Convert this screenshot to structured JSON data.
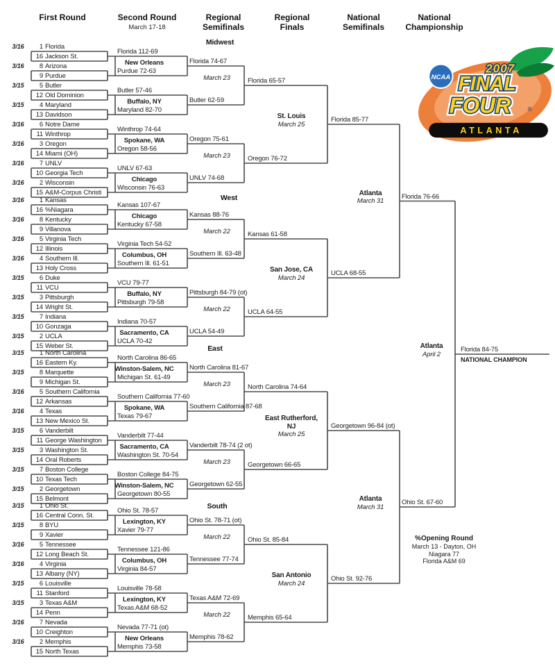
{
  "header": {
    "columns": [
      {
        "title": "First Round",
        "sub": ""
      },
      {
        "title": "Second Round",
        "sub": "March 17-18"
      },
      {
        "title": "Regional\nSemifinals",
        "sub": ""
      },
      {
        "title": "Regional\nFinals",
        "sub": ""
      },
      {
        "title": "National\nSemifinals",
        "sub": ""
      },
      {
        "title": "National\nChampionship",
        "sub": ""
      }
    ]
  },
  "regions": [
    {
      "name": "Midwest",
      "games": [
        {
          "date": "3/16",
          "s1": "1",
          "t1": "Florida",
          "s2": "16",
          "t2": "Jackson St.",
          "winner": "Florida 112-69"
        },
        {
          "date": "3/16",
          "s1": "8",
          "t1": "Arizona",
          "s2": "9",
          "t2": "Purdue",
          "winner": "Purdue 72-63"
        },
        {
          "date": "3/15",
          "s1": "5",
          "t1": "Butler",
          "s2": "12",
          "t2": "Old Dominion",
          "winner": "Butler 57-46"
        },
        {
          "date": "3/15",
          "s1": "4",
          "t1": "Maryland",
          "s2": "13",
          "t2": "Davidson",
          "winner": "Maryland 82-70"
        },
        {
          "date": "3/16",
          "s1": "6",
          "t1": "Notre Dame",
          "s2": "11",
          "t2": "Winthrop",
          "winner": "Winthrop 74-64"
        },
        {
          "date": "3/16",
          "s1": "3",
          "t1": "Oregon",
          "s2": "14",
          "t2": "Miami (OH)",
          "winner": "Oregon 58-56"
        },
        {
          "date": "3/16",
          "s1": "7",
          "t1": "UNLV",
          "s2": "10",
          "t2": "Georgia Tech",
          "winner": "UNLV 67-63"
        },
        {
          "date": "3/16",
          "s1": "2",
          "t1": "Wisconsin",
          "s2": "15",
          "t2": "A&M-Corpus Christi",
          "winner": "Wisconsin 76-63"
        }
      ],
      "cities": [
        "New Orleans",
        "Buffalo, NY",
        "Spokane, WA",
        "Chicago"
      ],
      "semifinal_results": [
        "Florida 74-67",
        "Butler 62-59",
        "Oregon 75-61",
        "UNLV 74-68"
      ],
      "semifinal_dates": [
        "March 23",
        "March 23"
      ],
      "final_results": [
        "Florida 65-57",
        "Oregon 76-72"
      ],
      "site": "St. Louis",
      "site_date": "March 25",
      "champion": "Florida 85-77"
    },
    {
      "name": "West",
      "games": [
        {
          "date": "3/16",
          "s1": "1",
          "t1": "Kansas",
          "s2": "16",
          "t2": "%Niagara",
          "winner": "Kansas 107-67"
        },
        {
          "date": "3/16",
          "s1": "8",
          "t1": "Kentucky",
          "s2": "9",
          "t2": "Villanova",
          "winner": "Kentucky 67-58"
        },
        {
          "date": "3/16",
          "s1": "5",
          "t1": "Virginia Tech",
          "s2": "12",
          "t2": "Illinois",
          "winner": "Virginia Tech 54-52"
        },
        {
          "date": "3/16",
          "s1": "4",
          "t1": "Southern Ill.",
          "s2": "13",
          "t2": "Holy Cross",
          "winner": "Southern Ill. 61-51"
        },
        {
          "date": "3/15",
          "s1": "6",
          "t1": "Duke",
          "s2": "11",
          "t2": "VCU",
          "winner": "VCU 79-77"
        },
        {
          "date": "3/15",
          "s1": "3",
          "t1": "Pittsburgh",
          "s2": "14",
          "t2": "Wright St.",
          "winner": "Pittsburgh 79-58"
        },
        {
          "date": "3/15",
          "s1": "7",
          "t1": "Indiana",
          "s2": "10",
          "t2": "Gonzaga",
          "winner": "Indiana 70-57"
        },
        {
          "date": "3/15",
          "s1": "2",
          "t1": "UCLA",
          "s2": "15",
          "t2": "Weber St.",
          "winner": "UCLA 70-42"
        }
      ],
      "cities": [
        "Chicago",
        "Columbus, OH",
        "Buffalo, NY",
        "Sacramento, CA"
      ],
      "semifinal_results": [
        "Kansas 88-76",
        "Southern Ill. 63-48",
        "Pittsburgh 84-79 (ot)",
        "UCLA 54-49"
      ],
      "semifinal_dates": [
        "March 22",
        "March 22"
      ],
      "final_results": [
        "Kansas 61-58",
        "UCLA 64-55"
      ],
      "site": "San Jose, CA",
      "site_date": "March 24",
      "champion": "UCLA 68-55"
    },
    {
      "name": "East",
      "games": [
        {
          "date": "3/15",
          "s1": "1",
          "t1": "North Carolina",
          "s2": "16",
          "t2": "Eastern Ky.",
          "winner": "North Carolina 86-65"
        },
        {
          "date": "3/15",
          "s1": "8",
          "t1": "Marquette",
          "s2": "9",
          "t2": "Michigan St.",
          "winner": "Michigan St. 61-49"
        },
        {
          "date": "3/16",
          "s1": "5",
          "t1": "Southern California",
          "s2": "12",
          "t2": "Arkansas",
          "winner": "Southern California 77-60"
        },
        {
          "date": "3/16",
          "s1": "4",
          "t1": "Texas",
          "s2": "13",
          "t2": "New Mexico St.",
          "winner": "Texas 79-67"
        },
        {
          "date": "3/15",
          "s1": "6",
          "t1": "Vanderbilt",
          "s2": "11",
          "t2": "George Washington",
          "winner": "Vanderbilt 77-44"
        },
        {
          "date": "3/15",
          "s1": "3",
          "t1": "Washington St.",
          "s2": "14",
          "t2": "Oral Roberts",
          "winner": "Washington St. 70-54"
        },
        {
          "date": "3/15",
          "s1": "7",
          "t1": "Boston College",
          "s2": "10",
          "t2": "Texas Tech",
          "winner": "Boston College 84-75"
        },
        {
          "date": "3/15",
          "s1": "2",
          "t1": "Georgetown",
          "s2": "15",
          "t2": "Belmont",
          "winner": "Georgetown 80-55"
        }
      ],
      "cities": [
        "Winston-Salem, NC",
        "Spokane, WA",
        "Sacramento, CA",
        "Winston-Salem, NC"
      ],
      "semifinal_results": [
        "North Carolina 81-67",
        "Southern California 87-68",
        "Vanderbilt 78-74 (2 ot)",
        "Georgetown 62-55"
      ],
      "semifinal_dates": [
        "March 23",
        "March 23"
      ],
      "final_results": [
        "North Carolina 74-64",
        "Georgetown 66-65"
      ],
      "site": "East Rutherford, NJ",
      "site_date": "March 25",
      "champion": "Georgetown 96-84 (ot)"
    },
    {
      "name": "South",
      "games": [
        {
          "date": "3/15",
          "s1": "1",
          "t1": "Ohio St.",
          "s2": "16",
          "t2": "Central Conn. St.",
          "winner": "Ohio St. 78-57"
        },
        {
          "date": "3/15",
          "s1": "8",
          "t1": "BYU",
          "s2": "9",
          "t2": "Xavier",
          "winner": "Xavier 79-77"
        },
        {
          "date": "3/16",
          "s1": "5",
          "t1": "Tennessee",
          "s2": "12",
          "t2": "Long Beach St.",
          "winner": "Tennessee 121-86"
        },
        {
          "date": "3/16",
          "s1": "4",
          "t1": "Virginia",
          "s2": "13",
          "t2": "Albany (NY)",
          "winner": "Virginia 84-57"
        },
        {
          "date": "3/15",
          "s1": "6",
          "t1": "Louisville",
          "s2": "11",
          "t2": "Stanford",
          "winner": "Louisville 78-58"
        },
        {
          "date": "3/15",
          "s1": "3",
          "t1": "Texas A&M",
          "s2": "14",
          "t2": "Penn",
          "winner": "Texas A&M 68-52"
        },
        {
          "date": "3/16",
          "s1": "7",
          "t1": "Nevada",
          "s2": "10",
          "t2": "Creighton",
          "winner": "Nevada 77-71 (ot)"
        },
        {
          "date": "3/16",
          "s1": "2",
          "t1": "Memphis",
          "s2": "15",
          "t2": "North Texas",
          "winner": "Memphis 73-58"
        }
      ],
      "cities": [
        "Lexington, KY",
        "Columbus, OH",
        "Lexington, KY",
        "New Orleans"
      ],
      "semifinal_results": [
        "Ohio St. 78-71 (ot)",
        "Tennessee 77-74",
        "Texas A&M 72-69",
        "Memphis 78-62"
      ],
      "semifinal_dates": [
        "March 22",
        "March 22"
      ],
      "final_results": [
        "Ohio St. 85-84",
        "Memphis 65-64"
      ],
      "site": "San Antonio",
      "site_date": "March 24",
      "champion": "Ohio St. 92-76"
    }
  ],
  "final_four": {
    "semifinals": [
      {
        "winner": "Florida 76-66",
        "site": "Atlanta",
        "date": "March 31"
      },
      {
        "winner": "Ohio St. 67-60",
        "site": "Atlanta",
        "date": "March 31"
      }
    ],
    "championship": {
      "winner": "Florida 84-75",
      "site": "Atlanta",
      "date": "April 2",
      "champion_label": "NATIONAL CHAMPION"
    }
  },
  "opening_round": {
    "title": "%Opening Round",
    "lines": [
      "March 13 - Dayton, OH",
      "Niagara 77",
      "Florida A&M 69"
    ]
  },
  "logo": {
    "ncaa": "NCAA",
    "year": "2007",
    "word1": "FINAL",
    "word2": "FOUR",
    "city": "ATLANTA",
    "reg": "®",
    "colors": {
      "peach": "#EC7F3A",
      "peach_light": "#F3A168",
      "leaf": "#17A24A",
      "leaf_dark": "#0C7B35",
      "disc_blue": "#2A6EBB",
      "gold": "#FFD21E",
      "outline_blue": "#123E7C",
      "bar_black": "#0D0D0D"
    }
  }
}
